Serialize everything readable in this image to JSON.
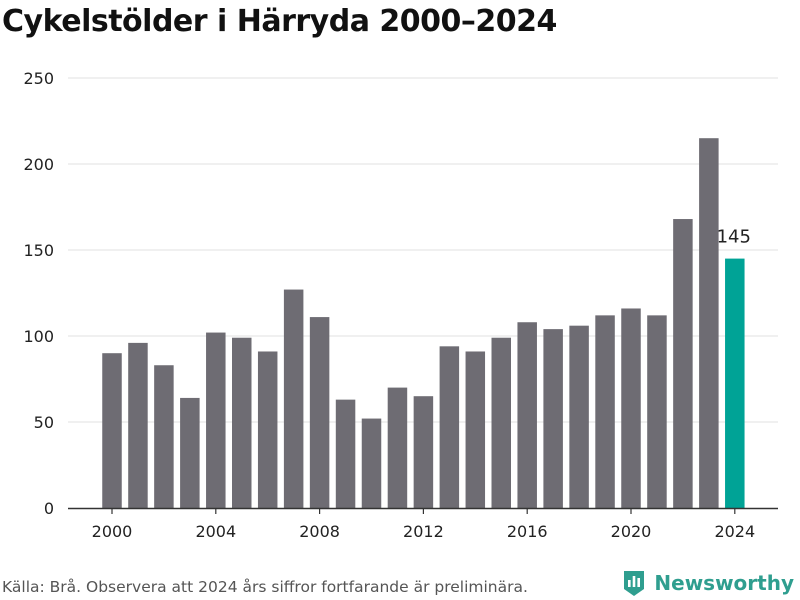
{
  "title": "Cykelstölder i Härryda 2000–2024",
  "footer": {
    "source": "Källa: Brå. Observera att 2024 års siffror fortfarande är preliminära."
  },
  "brand": {
    "name": "Newsworthy",
    "icon": "newsworthy-logo-icon",
    "color": "#2f9e8f"
  },
  "colors": {
    "bar": "#6e6c73",
    "highlight": "#00a396",
    "grid": "#e2e2e2",
    "axis": "#333333"
  },
  "chart_data": {
    "type": "bar",
    "x": [
      2000,
      2001,
      2002,
      2003,
      2004,
      2005,
      2006,
      2007,
      2008,
      2009,
      2010,
      2011,
      2012,
      2013,
      2014,
      2015,
      2016,
      2017,
      2018,
      2019,
      2020,
      2021,
      2022,
      2023,
      2024
    ],
    "values": [
      90,
      96,
      83,
      64,
      102,
      99,
      91,
      127,
      111,
      63,
      52,
      70,
      65,
      94,
      91,
      99,
      108,
      104,
      106,
      112,
      116,
      112,
      168,
      215,
      145
    ],
    "xticks": [
      "2000",
      "2004",
      "2008",
      "2012",
      "2016",
      "2020",
      "2024"
    ],
    "yticks": [
      "0",
      "50",
      "100",
      "150",
      "200",
      "250"
    ],
    "ylim": [
      0,
      250
    ],
    "highlight": {
      "index": 24,
      "label": "145"
    },
    "grid": true,
    "title": "Cykelstölder i Härryda 2000–2024",
    "xlabel": "",
    "ylabel": ""
  }
}
